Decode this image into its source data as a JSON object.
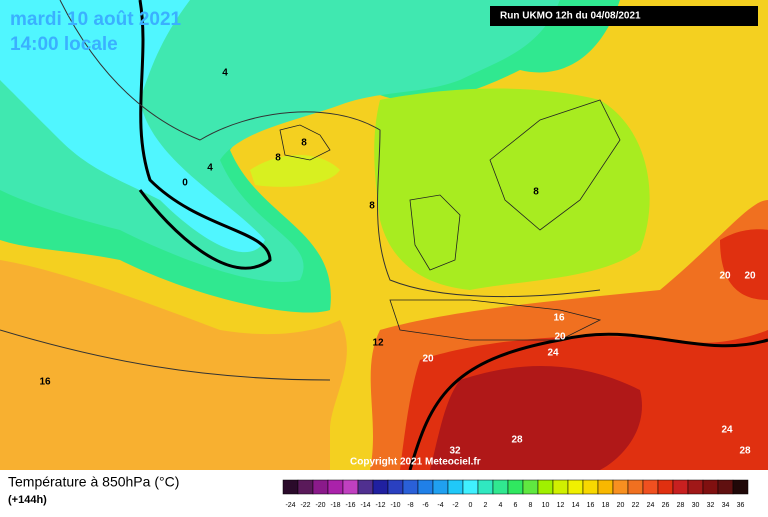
{
  "header": {
    "date": "mardi 10 août 2021",
    "time": "14:00 locale",
    "run": "Run UKMO 12h du 04/08/2021"
  },
  "copyright": "Copyright 2021 Meteociel.fr",
  "legend": {
    "title": "Température à 850hPa (°C)",
    "lead_time": "(+144h)",
    "scale": {
      "values": [
        -24,
        -22,
        -20,
        -18,
        -16,
        -14,
        -12,
        -10,
        -8,
        -6,
        -4,
        -2,
        0,
        2,
        4,
        6,
        8,
        10,
        12,
        14,
        16,
        18,
        20,
        22,
        24,
        26,
        28,
        30,
        32,
        34,
        36
      ],
      "colors": [
        "#2a0a2a",
        "#5a1a5a",
        "#8a1a8a",
        "#aa22aa",
        "#c040c0",
        "#503090",
        "#2020a0",
        "#2a40c0",
        "#2a60d8",
        "#2080e8",
        "#20a0f0",
        "#20c8f8",
        "#40f0ff",
        "#30e8c0",
        "#30e890",
        "#30e860",
        "#60e840",
        "#a0f000",
        "#d0f000",
        "#f0f000",
        "#f8d800",
        "#f8b800",
        "#f89020",
        "#f07020",
        "#f05020",
        "#e03010",
        "#c82020",
        "#a01818",
        "#801010",
        "#601010",
        "#200808"
      ]
    }
  },
  "contour_labels": [
    4,
    4,
    0,
    8,
    8,
    8,
    8,
    12,
    16,
    16,
    20,
    20,
    20,
    20,
    24,
    24,
    28,
    28,
    32
  ]
}
